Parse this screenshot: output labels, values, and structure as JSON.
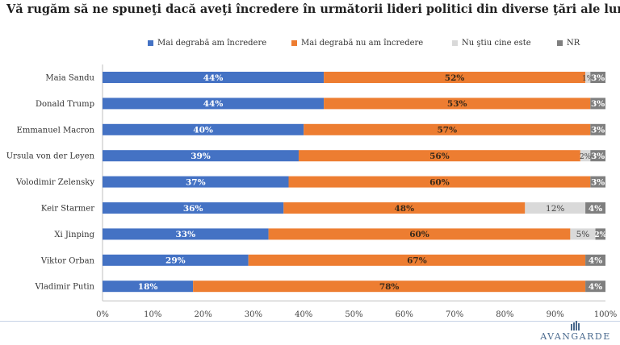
{
  "header": {
    "title": "Vă rugăm să ne spuneţi dacă aveţi încredere în următorii lideri politici din diverse ţări ale lumii:"
  },
  "logo": {
    "text": "AVANGARDE"
  },
  "colors": {
    "trust": "#4472c4",
    "distrust": "#ed7d31",
    "unknown": "#d9d9d9",
    "nr": "#7f7f7f"
  },
  "chart_data": {
    "type": "bar",
    "orientation": "horizontal",
    "stacked": true,
    "title": "",
    "xlabel": "",
    "ylabel": "",
    "xlim": [
      0,
      100
    ],
    "x_ticks": [
      "0%",
      "10%",
      "20%",
      "30%",
      "40%",
      "50%",
      "60%",
      "70%",
      "80%",
      "90%",
      "100%"
    ],
    "legend_position": "top",
    "categories": [
      "Maia Sandu",
      "Donald Trump",
      "Emmanuel Macron",
      "Ursula von der Leyen",
      "Volodimir Zelensky",
      "Keir Starmer",
      "Xi Jinping",
      "Viktor Orban",
      "Vladimir Putin"
    ],
    "series": [
      {
        "name": "Mai degrabă am încredere",
        "color": "#4472c4",
        "values": [
          44,
          44,
          40,
          39,
          37,
          36,
          33,
          29,
          18
        ],
        "labels": [
          "44%",
          "44%",
          "40%",
          "39%",
          "37%",
          "36%",
          "33%",
          "29%",
          "18%"
        ]
      },
      {
        "name": "Mai degrabă nu am încredere",
        "color": "#ed7d31",
        "values": [
          52,
          53,
          57,
          56,
          60,
          48,
          60,
          67,
          78
        ],
        "labels": [
          "52%",
          "53%",
          "57%",
          "56%",
          "60%",
          "48%",
          "60%",
          "67%",
          "78%"
        ]
      },
      {
        "name": "Nu ştiu cine este",
        "color": "#d9d9d9",
        "values": [
          1,
          0,
          0,
          2,
          0,
          12,
          5,
          0,
          0
        ],
        "labels": [
          "1%",
          "",
          "",
          "2%",
          "",
          "12%",
          "5%",
          "",
          ""
        ]
      },
      {
        "name": "NR",
        "color": "#7f7f7f",
        "values": [
          3,
          3,
          3,
          3,
          3,
          4,
          2,
          4,
          4
        ],
        "labels": [
          "3%",
          "3%",
          "3%",
          "3%",
          "3%",
          "4%",
          "2%",
          "4%",
          "4%"
        ]
      }
    ]
  }
}
